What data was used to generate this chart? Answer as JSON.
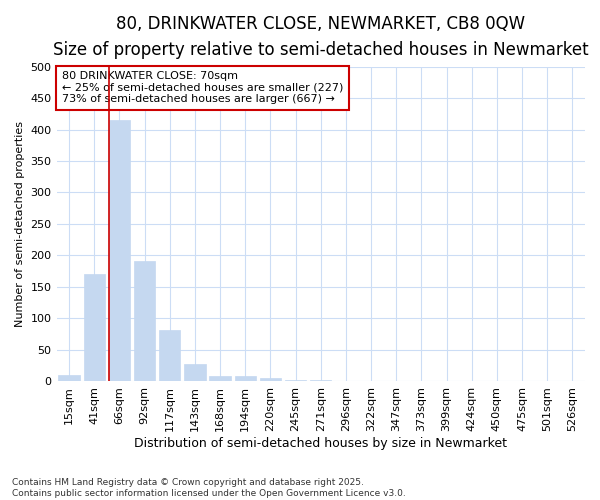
{
  "title": "80, DRINKWATER CLOSE, NEWMARKET, CB8 0QW",
  "subtitle": "Size of property relative to semi-detached houses in Newmarket",
  "xlabel": "Distribution of semi-detached houses by size in Newmarket",
  "ylabel": "Number of semi-detached properties",
  "categories": [
    "15sqm",
    "41sqm",
    "66sqm",
    "92sqm",
    "117sqm",
    "143sqm",
    "168sqm",
    "194sqm",
    "220sqm",
    "245sqm",
    "271sqm",
    "296sqm",
    "322sqm",
    "347sqm",
    "373sqm",
    "399sqm",
    "424sqm",
    "450sqm",
    "475sqm",
    "501sqm",
    "526sqm"
  ],
  "values": [
    10,
    170,
    415,
    192,
    82,
    28,
    9,
    8,
    5,
    3,
    2,
    1,
    1,
    0,
    0,
    0,
    0,
    0,
    0,
    0,
    0
  ],
  "bar_color": "#c5d8f0",
  "bar_edge_color": "#c5d8f0",
  "highlight_line_color": "#cc0000",
  "annotation_box_text": "80 DRINKWATER CLOSE: 70sqm\n← 25% of semi-detached houses are smaller (227)\n73% of semi-detached houses are larger (667) →",
  "annotation_box_color": "#cc0000",
  "ylim": [
    0,
    500
  ],
  "yticks": [
    0,
    50,
    100,
    150,
    200,
    250,
    300,
    350,
    400,
    450,
    500
  ],
  "background_color": "#ffffff",
  "grid_color": "#ccddf5",
  "title_fontsize": 12,
  "subtitle_fontsize": 10,
  "xlabel_fontsize": 9,
  "ylabel_fontsize": 8,
  "tick_fontsize": 8,
  "annotation_fontsize": 8,
  "footer_fontsize": 6.5,
  "footer": "Contains HM Land Registry data © Crown copyright and database right 2025.\nContains public sector information licensed under the Open Government Licence v3.0."
}
